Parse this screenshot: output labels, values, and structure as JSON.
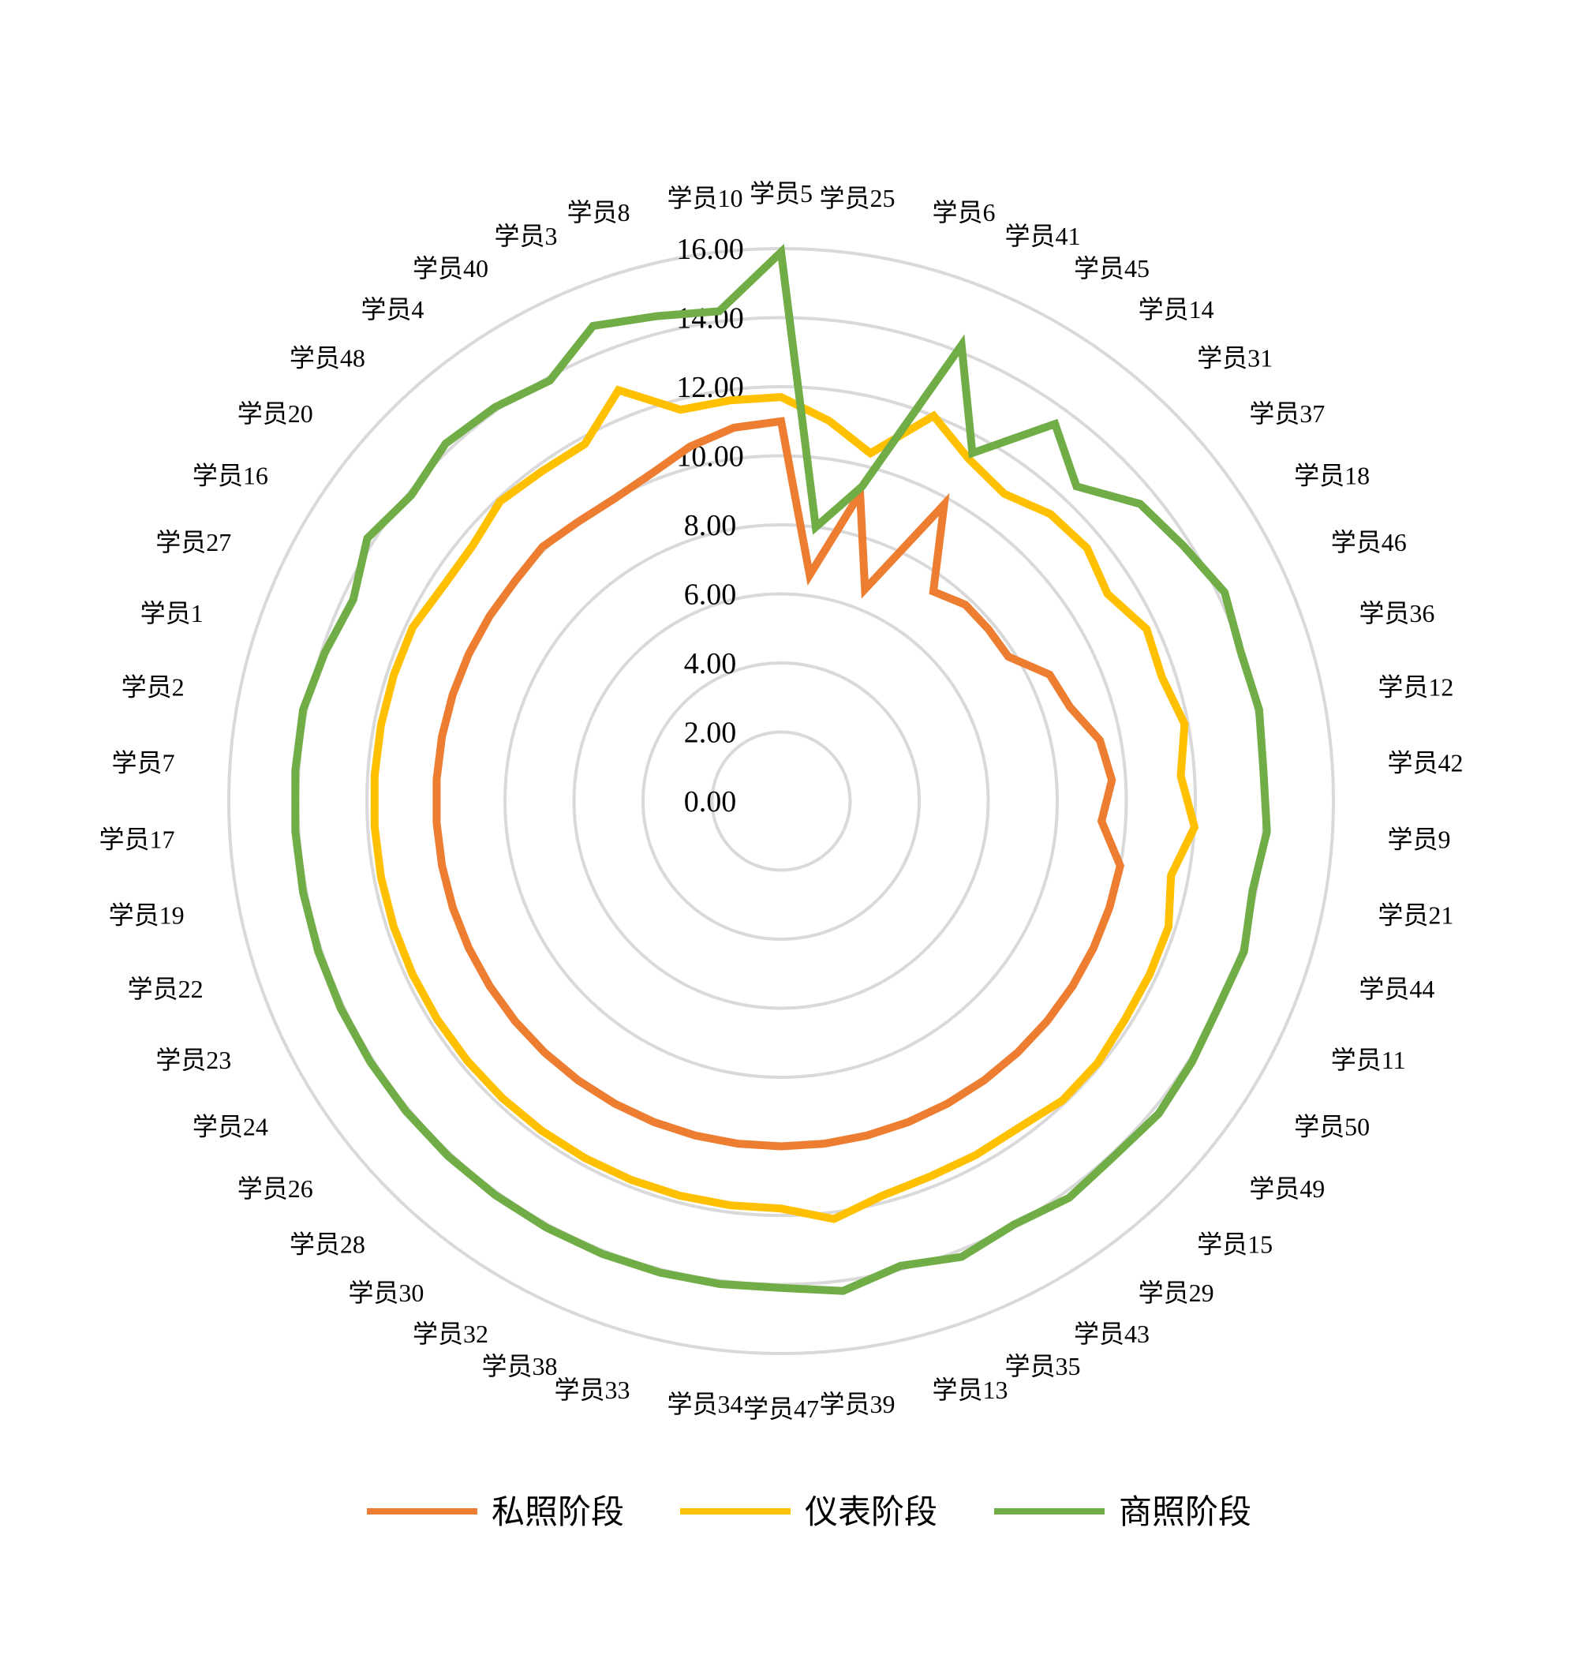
{
  "chart_data": {
    "type": "radar",
    "categories": [
      "学员5",
      "学员25",
      "学员6",
      "学员41",
      "学员45",
      "学员14",
      "学员31",
      "学员37",
      "学员18",
      "学员46",
      "学员36",
      "学员12",
      "学员42",
      "学员9",
      "学员21",
      "学员44",
      "学员11",
      "学员50",
      "学员49",
      "学员15",
      "学员29",
      "学员43",
      "学员35",
      "学员13",
      "学员39",
      "学员47",
      "学员34",
      "学员33",
      "学员38",
      "学员32",
      "学员30",
      "学员28",
      "学员26",
      "学员24",
      "学员23",
      "学员22",
      "学员19",
      "学员17",
      "学员7",
      "学员2",
      "学员1",
      "学员27",
      "学员16",
      "学员20",
      "学员48",
      "学员4",
      "学员40",
      "学员3",
      "学员8",
      "学员10"
    ],
    "series": [
      {
        "name": "私照阶段",
        "color": "#ED7D31",
        "values": [
          11.0,
          6.6,
          9.2,
          6.6,
          9.8,
          7.5,
          7.8,
          7.8,
          7.8,
          8.6,
          8.8,
          9.4,
          9.6,
          9.3,
          10.0,
          10.0,
          10.0,
          10.0,
          10.0,
          10.0,
          10.0,
          10.0,
          10.0,
          10.0,
          10.0,
          10.0,
          10.0,
          10.0,
          10.0,
          10.0,
          10.0,
          10.0,
          10.0,
          10.0,
          10.0,
          10.0,
          10.0,
          10.0,
          10.0,
          10.0,
          10.0,
          10.0,
          10.0,
          10.0,
          10.1,
          10.0,
          10.0,
          10.2,
          10.6,
          10.9
        ]
      },
      {
        "name": "仪表阶段",
        "color": "#FFC000",
        "values": [
          11.7,
          11.1,
          10.4,
          12.0,
          11.3,
          11.0,
          11.4,
          11.5,
          11.2,
          11.7,
          11.6,
          11.9,
          11.6,
          12.0,
          11.5,
          11.8,
          11.8,
          11.8,
          11.9,
          11.9,
          11.7,
          11.7,
          11.7,
          11.8,
          12.2,
          11.8,
          11.8,
          11.8,
          11.8,
          11.8,
          11.8,
          11.8,
          11.8,
          11.8,
          11.8,
          11.8,
          11.8,
          11.8,
          11.8,
          11.8,
          11.8,
          11.8,
          11.6,
          11.6,
          11.9,
          11.8,
          11.8,
          12.8,
          11.7,
          11.7
        ]
      },
      {
        "name": "商照阶段",
        "color": "#70AD47",
        "values": [
          15.9,
          8.0,
          9.4,
          14.2,
          11.5,
          13.5,
          12.5,
          13.5,
          13.8,
          14.2,
          14.0,
          14.1,
          14.0,
          14.1,
          13.9,
          14.1,
          14.0,
          14.1,
          14.2,
          14.1,
          14.2,
          14.0,
          14.2,
          13.9,
          14.3,
          14.1,
          14.1,
          14.1,
          14.1,
          14.1,
          14.1,
          14.1,
          14.1,
          14.1,
          14.1,
          14.1,
          14.1,
          14.1,
          14.1,
          14.1,
          13.9,
          13.7,
          14.2,
          13.9,
          14.2,
          14.1,
          13.9,
          14.8,
          14.5,
          14.3
        ]
      }
    ],
    "rlim": [
      0,
      16
    ],
    "ticks": [
      "0.00",
      "2.00",
      "4.00",
      "6.00",
      "8.00",
      "10.00",
      "12.00",
      "14.00",
      "16.00"
    ],
    "tick_values": [
      0,
      2,
      4,
      6,
      8,
      10,
      12,
      14,
      16
    ],
    "grid": true,
    "grid_color": "#D9D9D9",
    "legend_position": "bottom"
  }
}
